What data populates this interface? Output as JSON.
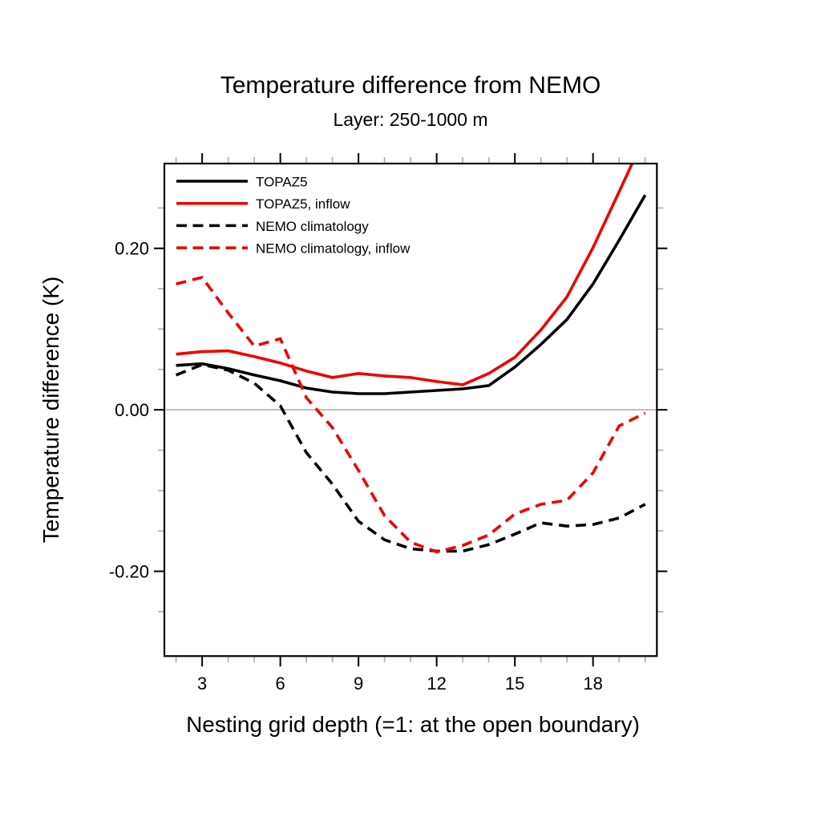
{
  "figure": {
    "title": "Temperature difference from NEMO",
    "subtitle": "Layer: 250-1000 m"
  },
  "chart_data": {
    "type": "line",
    "title": "Temperature difference from NEMO",
    "subtitle": "Layer: 250-1000 m",
    "xlabel": "Nesting grid depth (=1: at the open boundary)",
    "ylabel": "Temperature difference (K)",
    "xlim": [
      1.55,
      20.45
    ],
    "ylim": [
      -0.305,
      0.305
    ],
    "grid": false,
    "legend_position": "top-left",
    "x": [
      2,
      3,
      4,
      5,
      6,
      7,
      8,
      9,
      10,
      11,
      12,
      13,
      14,
      15,
      16,
      17,
      18,
      19,
      20
    ],
    "series": [
      {
        "name": "TOPAZ5",
        "color": "#000000",
        "style": "solid",
        "values": [
          0.055,
          0.057,
          0.051,
          0.043,
          0.036,
          0.027,
          0.022,
          0.02,
          0.02,
          0.022,
          0.024,
          0.026,
          0.03,
          0.053,
          0.081,
          0.112,
          0.156,
          0.21,
          0.266
        ]
      },
      {
        "name": "TOPAZ5, inflow",
        "color": "#ee0000",
        "style": "solid",
        "values": [
          0.069,
          0.072,
          0.073,
          0.066,
          0.058,
          0.048,
          0.04,
          0.045,
          0.042,
          0.04,
          0.035,
          0.031,
          0.045,
          0.065,
          0.099,
          0.14,
          0.201,
          0.27,
          0.34
        ]
      },
      {
        "name": "NEMO climatology",
        "color": "#000000",
        "style": "dashed",
        "values": [
          0.043,
          0.056,
          0.049,
          0.033,
          0.005,
          -0.053,
          -0.092,
          -0.138,
          -0.161,
          -0.172,
          -0.175,
          -0.175,
          -0.167,
          -0.154,
          -0.14,
          -0.144,
          -0.142,
          -0.134,
          -0.117
        ]
      },
      {
        "name": "NEMO climatology, inflow",
        "color": "#ee0000",
        "style": "dashed",
        "values": [
          0.156,
          0.164,
          0.12,
          0.079,
          0.088,
          0.015,
          -0.022,
          -0.075,
          -0.131,
          -0.164,
          -0.176,
          -0.168,
          -0.155,
          -0.129,
          -0.117,
          -0.112,
          -0.078,
          -0.02,
          -0.004
        ]
      }
    ],
    "x_major_ticks": [
      3,
      6,
      9,
      12,
      15,
      18
    ],
    "x_major_labels": [
      "3",
      "6",
      "9",
      "12",
      "15",
      "18"
    ],
    "x_minor_ticks": [
      2,
      4,
      5,
      7,
      8,
      10,
      11,
      13,
      14,
      16,
      17,
      19,
      20
    ],
    "y_major_ticks": [
      0.2,
      0.0,
      -0.2
    ],
    "y_major_labels": [
      "0.20",
      "0.00",
      "-0.20"
    ],
    "y_minor_ticks": [
      0.25,
      0.15,
      0.1,
      0.05,
      -0.05,
      -0.1,
      -0.15,
      -0.25
    ],
    "zero_line": 0,
    "colors": {
      "axis": "#000000",
      "zero_line": "#b4b4b4",
      "minor_tick": "#b4b4b4",
      "background": "#ffffff"
    }
  }
}
